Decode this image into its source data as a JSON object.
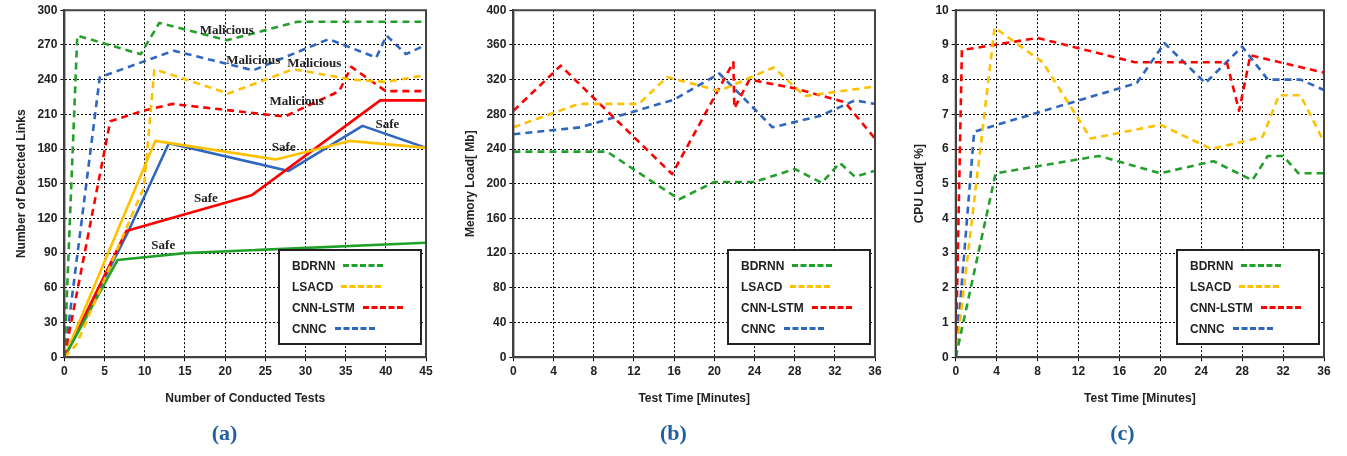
{
  "chart_data": [
    {
      "type": "line",
      "xlabel": "Number of Conducted Tests",
      "ylabel": "Number of Detected Links",
      "xlim": [
        0,
        45
      ],
      "xticks": [
        0,
        5,
        10,
        15,
        20,
        25,
        30,
        35,
        40,
        45
      ],
      "ylim": [
        0,
        300
      ],
      "yticks": [
        0,
        30,
        60,
        90,
        120,
        150,
        180,
        210,
        240,
        270,
        300
      ],
      "grid": true,
      "legend": "bottom right",
      "marker": "none",
      "line_style": "dashed",
      "series": [
        {
          "name": "BDRNN",
          "color": "#22a02a",
          "x": [
            0,
            1.6,
            9.5,
            11.8,
            20.2,
            29,
            45
          ],
          "values": [
            0,
            278,
            262,
            289,
            274,
            290,
            290
          ]
        },
        {
          "name": "LSACD",
          "color": "#ffc000",
          "x": [
            0,
            1.5,
            9.9,
            11.2,
            20.4,
            28.5,
            35.7,
            40,
            45
          ],
          "values": [
            0,
            11,
            147,
            249,
            228,
            249,
            240,
            238,
            244
          ]
        },
        {
          "name": "CNN-LSTM",
          "color": "#ff0000",
          "x": [
            0,
            5.7,
            9.8,
            13.4,
            27.4,
            34.2,
            35.7,
            40,
            45
          ],
          "values": [
            0,
            204,
            213,
            219,
            208,
            230,
            251,
            230,
            230
          ]
        },
        {
          "name": "CNNC",
          "color": "#2e66c0",
          "x": [
            0,
            4.4,
            13.6,
            23.5,
            32.9,
            38.8,
            40.1,
            42.5,
            45
          ],
          "values": [
            0,
            242,
            265,
            248,
            275,
            259,
            278,
            262,
            270
          ]
        },
        {
          "color": "#22a02a",
          "line_style": "solid",
          "x": [
            0,
            6.6,
            15,
            45
          ],
          "values": [
            0,
            84,
            90,
            99
          ]
        },
        {
          "color": "#ffc000",
          "line_style": "solid",
          "x": [
            0,
            11.3,
            26.3,
            35.5,
            45
          ],
          "values": [
            0,
            187,
            171,
            187,
            181
          ]
        },
        {
          "color": "#ff0000",
          "line_style": "solid",
          "x": [
            0,
            7.7,
            23.3,
            39.3,
            45
          ],
          "values": [
            0,
            109,
            140,
            222,
            222
          ]
        },
        {
          "color": "#2e66c0",
          "line_style": "solid",
          "x": [
            0,
            7.9,
            13,
            27.9,
            37.1,
            45
          ],
          "values": [
            0,
            108,
            185,
            161,
            200,
            181
          ]
        }
      ],
      "annotations": [
        {
          "text": "Malicious",
          "x": 20.2,
          "y": 274
        },
        {
          "text": "Malicious",
          "x": 23.5,
          "y": 248
        },
        {
          "text": "Malicious",
          "x": 31.1,
          "y": 246
        },
        {
          "text": "Malicious",
          "x": 28.9,
          "y": 213
        },
        {
          "text": "Safe",
          "x": 40.2,
          "y": 193
        },
        {
          "text": "Safe",
          "x": 27.3,
          "y": 173
        },
        {
          "text": "Safe",
          "x": 17.6,
          "y": 129
        },
        {
          "text": "Safe",
          "x": 12.3,
          "y": 88
        },
        "(a)"
      ]
    },
    {
      "type": "line",
      "xlabel": "Test Time [Minutes]",
      "ylabel": "Memory Load[ Mb]",
      "xlim": [
        0,
        36
      ],
      "xticks": [
        0,
        4,
        8,
        12,
        16,
        20,
        24,
        28,
        32,
        36
      ],
      "ylim": [
        0,
        400
      ],
      "yticks": [
        0,
        40,
        80,
        120,
        160,
        200,
        240,
        280,
        320,
        360,
        400
      ],
      "grid": true,
      "legend": "bottom right",
      "marker": "none",
      "line_style": "dashed",
      "series": [
        {
          "name": "BDRNN",
          "color": "#22a02a",
          "x": [
            0,
            9.3,
            16.5,
            20,
            24,
            28,
            30.7,
            32.5,
            34,
            36
          ],
          "values": [
            237,
            237,
            182,
            202,
            202,
            217,
            201,
            224,
            208,
            215
          ]
        },
        {
          "name": "LSACD",
          "color": "#ffc000",
          "x": [
            0,
            6.5,
            12.5,
            15.3,
            20.5,
            25.9,
            29,
            36
          ],
          "values": [
            265,
            292,
            292,
            323,
            307,
            334,
            301,
            312
          ]
        },
        {
          "name": "CNN-LSTM",
          "color": "#ff0000",
          "x": [
            0,
            4.7,
            15.8,
            21.9,
            22,
            23.5,
            28,
            33,
            36
          ],
          "values": [
            284,
            336,
            211,
            340,
            287,
            320,
            310,
            294,
            252
          ]
        },
        {
          "name": "CNNC",
          "color": "#2e66c0",
          "x": [
            0,
            6.7,
            16,
            20.5,
            25.8,
            30.5,
            34,
            36
          ],
          "values": [
            257,
            265,
            297,
            327,
            265,
            278,
            296,
            292
          ]
        }
      ],
      "annotations": [
        "(b)"
      ]
    },
    {
      "type": "line",
      "xlabel": "Test Time [Minutes]",
      "ylabel": "CPU Load[ %]",
      "xlim": [
        0,
        36
      ],
      "xticks": [
        0,
        4,
        8,
        12,
        16,
        20,
        24,
        28,
        32,
        36
      ],
      "ylim": [
        0,
        10
      ],
      "yticks": [
        0,
        1,
        2,
        3,
        4,
        5,
        6,
        7,
        8,
        9,
        10
      ],
      "grid": true,
      "legend": "bottom right",
      "marker": "none",
      "line_style": "dashed",
      "series": [
        {
          "name": "BDRNN",
          "color": "#22a02a",
          "x": [
            0,
            3.9,
            14,
            20,
            25.2,
            29,
            30.5,
            32,
            33.5,
            36
          ],
          "values": [
            0,
            5.3,
            5.8,
            5.3,
            5.65,
            5.1,
            5.8,
            5.8,
            5.3,
            5.3
          ]
        },
        {
          "name": "LSACD",
          "color": "#ffc000",
          "x": [
            0,
            3.8,
            8.5,
            13.2,
            20,
            25,
            30,
            31.6,
            33.7,
            36
          ],
          "values": [
            0,
            9.5,
            8.5,
            6.3,
            6.7,
            6,
            6.35,
            7.55,
            7.55,
            6.2
          ]
        },
        {
          "name": "CNN-LSTM",
          "color": "#ff0000",
          "x": [
            0,
            0.6,
            8,
            17.5,
            26.5,
            27.7,
            28.8,
            36
          ],
          "values": [
            0,
            8.85,
            9.2,
            8.5,
            8.5,
            7.1,
            8.7,
            8.2
          ]
        },
        {
          "name": "CNNC",
          "color": "#2e66c0",
          "x": [
            0,
            1.8,
            17.7,
            20.4,
            24.4,
            28,
            30.5,
            33.7,
            36
          ],
          "values": [
            0,
            6.5,
            7.9,
            9.05,
            7.9,
            8.95,
            8,
            8,
            7.7
          ]
        }
      ],
      "annotations": [
        "(c)"
      ]
    }
  ]
}
